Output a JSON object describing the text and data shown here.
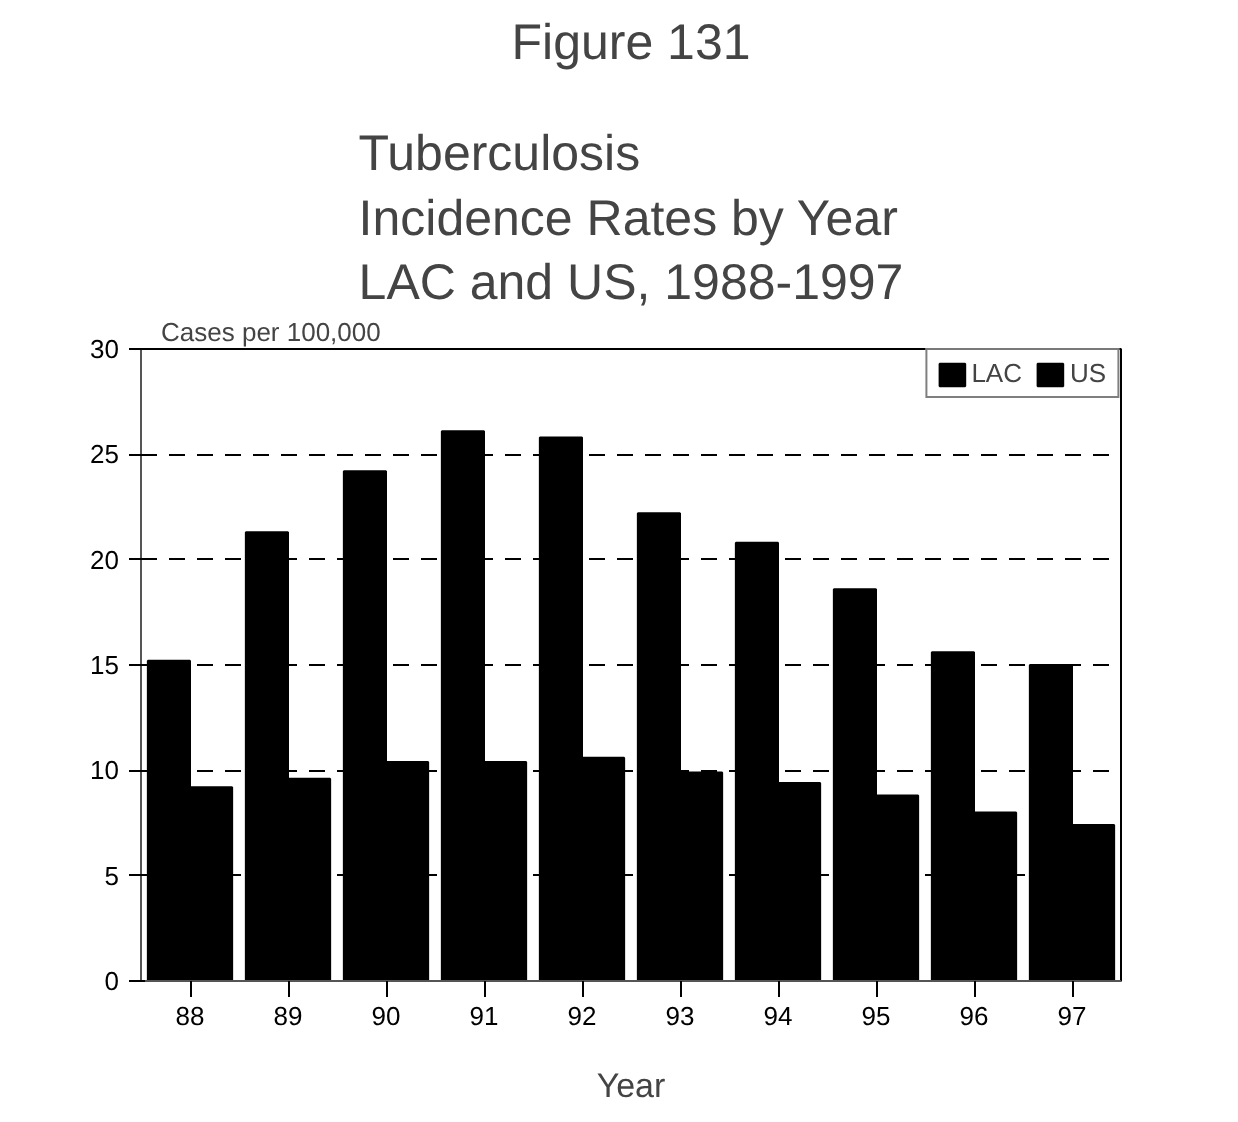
{
  "chart_data": {
    "type": "bar",
    "title": "Figure 131",
    "subtitle": "Tuberculosis\nIncidence Rates by Year\nLAC and US, 1988-1997",
    "xlabel": "Year",
    "ylabel": "Cases per 100,000",
    "categories": [
      "88",
      "89",
      "90",
      "91",
      "92",
      "93",
      "94",
      "95",
      "96",
      "97"
    ],
    "series": [
      {
        "name": "LAC",
        "color": "#000000",
        "values": [
          15.2,
          21.3,
          24.2,
          26.1,
          25.8,
          22.2,
          20.8,
          18.6,
          15.6,
          15.0
        ]
      },
      {
        "name": "US",
        "color": "#000000",
        "values": [
          9.2,
          9.6,
          10.4,
          10.4,
          10.6,
          9.9,
          9.4,
          8.8,
          8.0,
          7.4
        ]
      }
    ],
    "ylim": [
      0,
      30
    ],
    "yticks": [
      0,
      5,
      10,
      15,
      20,
      25,
      30
    ],
    "grid": "y",
    "legend": "top right"
  }
}
